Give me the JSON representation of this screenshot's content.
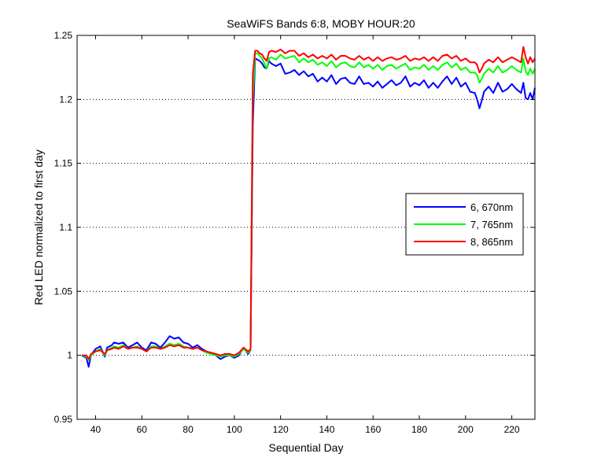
{
  "chart_data": {
    "type": "line",
    "title": "SeaWiFS Bands 6:8, MOBY HOUR:20",
    "xlabel": "Sequential Day",
    "ylabel": "Red LED normalized to first day",
    "xlim": [
      32,
      230
    ],
    "ylim": [
      0.95,
      1.25
    ],
    "xticks": [
      40,
      60,
      80,
      100,
      120,
      140,
      160,
      180,
      200,
      220
    ],
    "yticks": [
      0.95,
      1,
      1.05,
      1.1,
      1.15,
      1.2,
      1.25
    ],
    "ytick_labels": [
      "0.95",
      "1",
      "1.05",
      "1.1",
      "1.15",
      "1.2",
      "1.25"
    ],
    "grid": "horizontal-dotted",
    "legend_position": "right",
    "series": [
      {
        "name": "6, 670nm",
        "color": "#0000ff",
        "x": [
          34,
          36,
          37,
          38,
          40,
          42,
          44,
          45,
          47,
          48,
          50,
          52,
          54,
          56,
          58,
          60,
          62,
          64,
          66,
          68,
          70,
          72,
          74,
          76,
          78,
          80,
          82,
          84,
          86,
          88,
          90,
          92,
          94,
          96,
          98,
          100,
          102,
          104,
          106,
          107,
          108,
          109,
          110,
          111,
          112,
          113,
          114,
          115,
          116,
          118,
          120,
          122,
          124,
          126,
          128,
          130,
          132,
          134,
          136,
          138,
          140,
          142,
          144,
          146,
          148,
          150,
          152,
          154,
          156,
          158,
          160,
          162,
          164,
          166,
          168,
          170,
          172,
          174,
          176,
          178,
          180,
          182,
          184,
          186,
          188,
          190,
          192,
          194,
          196,
          198,
          200,
          202,
          204,
          205,
          206,
          207,
          208,
          210,
          212,
          214,
          216,
          218,
          220,
          222,
          224,
          225,
          226,
          227,
          228,
          229,
          230
        ],
        "y": [
          1.0,
          0.998,
          0.991,
          1.0,
          1.005,
          1.007,
          0.999,
          1.006,
          1.008,
          1.01,
          1.009,
          1.01,
          1.006,
          1.008,
          1.01,
          1.006,
          1.004,
          1.01,
          1.009,
          1.006,
          1.01,
          1.015,
          1.013,
          1.014,
          1.01,
          1.009,
          1.006,
          1.008,
          1.005,
          1.003,
          1.001,
          1.0,
          0.997,
          0.999,
          1.0,
          0.998,
          1.0,
          1.006,
          1.001,
          1.004,
          1.18,
          1.232,
          1.231,
          1.23,
          1.228,
          1.225,
          1.224,
          1.23,
          1.228,
          1.226,
          1.228,
          1.22,
          1.221,
          1.223,
          1.219,
          1.222,
          1.218,
          1.22,
          1.214,
          1.217,
          1.214,
          1.219,
          1.212,
          1.216,
          1.217,
          1.213,
          1.212,
          1.218,
          1.212,
          1.213,
          1.21,
          1.214,
          1.209,
          1.212,
          1.215,
          1.211,
          1.213,
          1.218,
          1.21,
          1.213,
          1.211,
          1.215,
          1.209,
          1.213,
          1.209,
          1.214,
          1.218,
          1.212,
          1.217,
          1.21,
          1.213,
          1.206,
          1.205,
          1.2,
          1.193,
          1.199,
          1.206,
          1.21,
          1.205,
          1.213,
          1.206,
          1.208,
          1.212,
          1.208,
          1.205,
          1.213,
          1.201,
          1.2,
          1.205,
          1.2,
          1.209
        ]
      },
      {
        "name": "7, 765nm",
        "color": "#00ff00",
        "x": [
          34,
          36,
          37,
          38,
          40,
          42,
          44,
          45,
          47,
          48,
          50,
          52,
          54,
          56,
          58,
          60,
          62,
          64,
          66,
          68,
          70,
          72,
          74,
          76,
          78,
          80,
          82,
          84,
          86,
          88,
          90,
          92,
          94,
          96,
          98,
          100,
          102,
          104,
          106,
          107,
          108,
          109,
          110,
          111,
          112,
          113,
          114,
          115,
          116,
          118,
          120,
          122,
          124,
          126,
          128,
          130,
          132,
          134,
          136,
          138,
          140,
          142,
          144,
          146,
          148,
          150,
          152,
          154,
          156,
          158,
          160,
          162,
          164,
          166,
          168,
          170,
          172,
          174,
          176,
          178,
          180,
          182,
          184,
          186,
          188,
          190,
          192,
          194,
          196,
          198,
          200,
          202,
          204,
          205,
          206,
          207,
          208,
          210,
          212,
          214,
          216,
          218,
          220,
          222,
          224,
          225,
          226,
          227,
          228,
          229,
          230
        ],
        "y": [
          1.0,
          0.999,
          0.996,
          1.0,
          1.003,
          1.005,
          1.0,
          1.004,
          1.006,
          1.007,
          1.006,
          1.008,
          1.005,
          1.006,
          1.007,
          1.005,
          1.003,
          1.007,
          1.007,
          1.005,
          1.007,
          1.009,
          1.008,
          1.009,
          1.007,
          1.006,
          1.005,
          1.006,
          1.004,
          1.002,
          1.001,
          1.0,
          0.999,
          1.0,
          1.0,
          0.999,
          1.001,
          1.005,
          1.002,
          1.004,
          1.2,
          1.236,
          1.236,
          1.234,
          1.232,
          1.228,
          1.224,
          1.232,
          1.233,
          1.231,
          1.235,
          1.232,
          1.233,
          1.234,
          1.229,
          1.232,
          1.229,
          1.231,
          1.227,
          1.229,
          1.226,
          1.23,
          1.225,
          1.228,
          1.229,
          1.226,
          1.225,
          1.229,
          1.225,
          1.227,
          1.224,
          1.227,
          1.223,
          1.226,
          1.227,
          1.224,
          1.226,
          1.228,
          1.223,
          1.225,
          1.224,
          1.227,
          1.223,
          1.226,
          1.223,
          1.227,
          1.229,
          1.225,
          1.228,
          1.223,
          1.225,
          1.221,
          1.221,
          1.219,
          1.213,
          1.216,
          1.22,
          1.224,
          1.221,
          1.226,
          1.221,
          1.223,
          1.226,
          1.223,
          1.221,
          1.232,
          1.222,
          1.219,
          1.224,
          1.22,
          1.224
        ]
      },
      {
        "name": "8, 865nm",
        "color": "#ff0000",
        "x": [
          34,
          36,
          37,
          38,
          40,
          42,
          44,
          45,
          47,
          48,
          50,
          52,
          54,
          56,
          58,
          60,
          62,
          64,
          66,
          68,
          70,
          72,
          74,
          76,
          78,
          80,
          82,
          84,
          86,
          88,
          90,
          92,
          94,
          96,
          98,
          100,
          102,
          104,
          106,
          107,
          108,
          109,
          110,
          111,
          112,
          113,
          114,
          115,
          116,
          118,
          120,
          122,
          124,
          126,
          128,
          130,
          132,
          134,
          136,
          138,
          140,
          142,
          144,
          146,
          148,
          150,
          152,
          154,
          156,
          158,
          160,
          162,
          164,
          166,
          168,
          170,
          172,
          174,
          176,
          178,
          180,
          182,
          184,
          186,
          188,
          190,
          192,
          194,
          196,
          198,
          200,
          202,
          204,
          205,
          206,
          207,
          208,
          210,
          212,
          214,
          216,
          218,
          220,
          222,
          224,
          225,
          226,
          227,
          228,
          229,
          230
        ],
        "y": [
          1.0,
          1.0,
          0.997,
          1.001,
          1.003,
          1.004,
          1.001,
          1.004,
          1.005,
          1.006,
          1.005,
          1.007,
          1.005,
          1.006,
          1.006,
          1.005,
          1.003,
          1.006,
          1.006,
          1.005,
          1.006,
          1.008,
          1.007,
          1.008,
          1.006,
          1.006,
          1.005,
          1.006,
          1.004,
          1.003,
          1.002,
          1.001,
          1.0,
          1.001,
          1.001,
          1.0,
          1.002,
          1.006,
          1.003,
          1.005,
          1.22,
          1.238,
          1.238,
          1.236,
          1.235,
          1.232,
          1.23,
          1.237,
          1.238,
          1.237,
          1.239,
          1.236,
          1.238,
          1.238,
          1.234,
          1.236,
          1.233,
          1.235,
          1.232,
          1.234,
          1.232,
          1.235,
          1.231,
          1.234,
          1.234,
          1.232,
          1.231,
          1.234,
          1.231,
          1.233,
          1.23,
          1.233,
          1.23,
          1.232,
          1.233,
          1.231,
          1.232,
          1.234,
          1.23,
          1.232,
          1.231,
          1.233,
          1.23,
          1.233,
          1.23,
          1.234,
          1.235,
          1.232,
          1.234,
          1.23,
          1.232,
          1.229,
          1.229,
          1.227,
          1.221,
          1.224,
          1.228,
          1.231,
          1.229,
          1.233,
          1.229,
          1.231,
          1.233,
          1.231,
          1.229,
          1.241,
          1.233,
          1.228,
          1.233,
          1.229,
          1.232
        ]
      }
    ]
  }
}
